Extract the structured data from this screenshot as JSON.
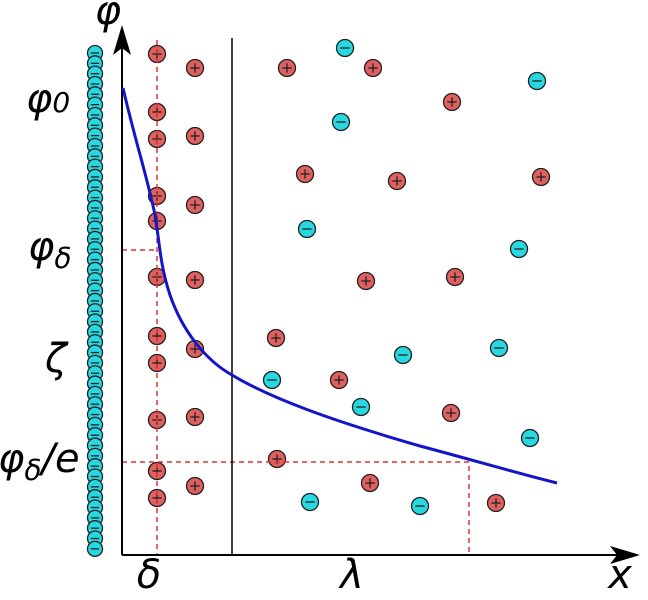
{
  "axes": {
    "y_label": "φ",
    "x_label": "x"
  },
  "potential_levels": [
    {
      "symbol": "φ",
      "subscript": "0"
    },
    {
      "symbol": "φ",
      "subscript": "δ"
    },
    {
      "symbol": "ζ"
    },
    {
      "symbol": "φ",
      "subscript": "δ",
      "suffix": "/e"
    }
  ],
  "distance_marks": [
    "δ",
    "λ"
  ]
}
